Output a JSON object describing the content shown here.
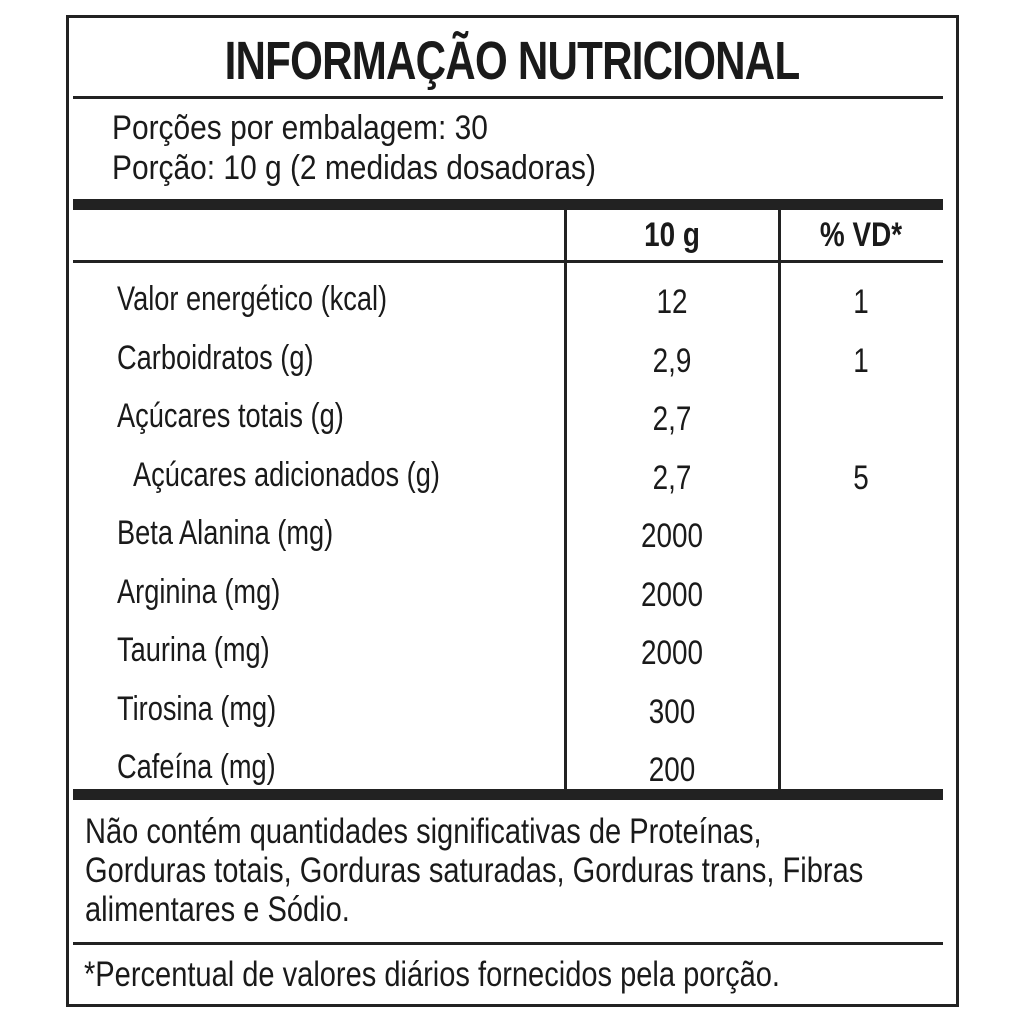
{
  "title": "INFORMAÇÃO NUTRICIONAL",
  "serving": {
    "per_package": "Porções por embalagem: 30",
    "portion": "Porção: 10 g (2 medidas dosadoras)"
  },
  "table": {
    "headers": [
      "",
      "10 g",
      "% VD*"
    ],
    "rows": [
      {
        "name": "Valor energético (kcal)",
        "amount": "12",
        "vd": "1",
        "indent": false
      },
      {
        "name": "Carboidratos (g)",
        "amount": "2,9",
        "vd": "1",
        "indent": false
      },
      {
        "name": "Açúcares totais (g)",
        "amount": "2,7",
        "vd": "",
        "indent": false
      },
      {
        "name": "Açúcares adicionados (g)",
        "amount": "2,7",
        "vd": "5",
        "indent": true
      },
      {
        "name": "Beta Alanina (mg)",
        "amount": "2000",
        "vd": "",
        "indent": false
      },
      {
        "name": "Arginina (mg)",
        "amount": "2000",
        "vd": "",
        "indent": false
      },
      {
        "name": "Taurina (mg)",
        "amount": "2000",
        "vd": "",
        "indent": false
      },
      {
        "name": "Tirosina (mg)",
        "amount": "300",
        "vd": "",
        "indent": false
      },
      {
        "name": "Cafeína (mg)",
        "amount": "200",
        "vd": "",
        "indent": false
      }
    ]
  },
  "notes": {
    "lines": [
      "Não contém quantidades significativas de Proteínas,",
      "Gorduras totais, Gorduras saturadas, Gorduras trans, Fibras",
      "alimentares e Sódio."
    ],
    "footnote": "*Percentual de valores diários fornecidos pela porção."
  }
}
